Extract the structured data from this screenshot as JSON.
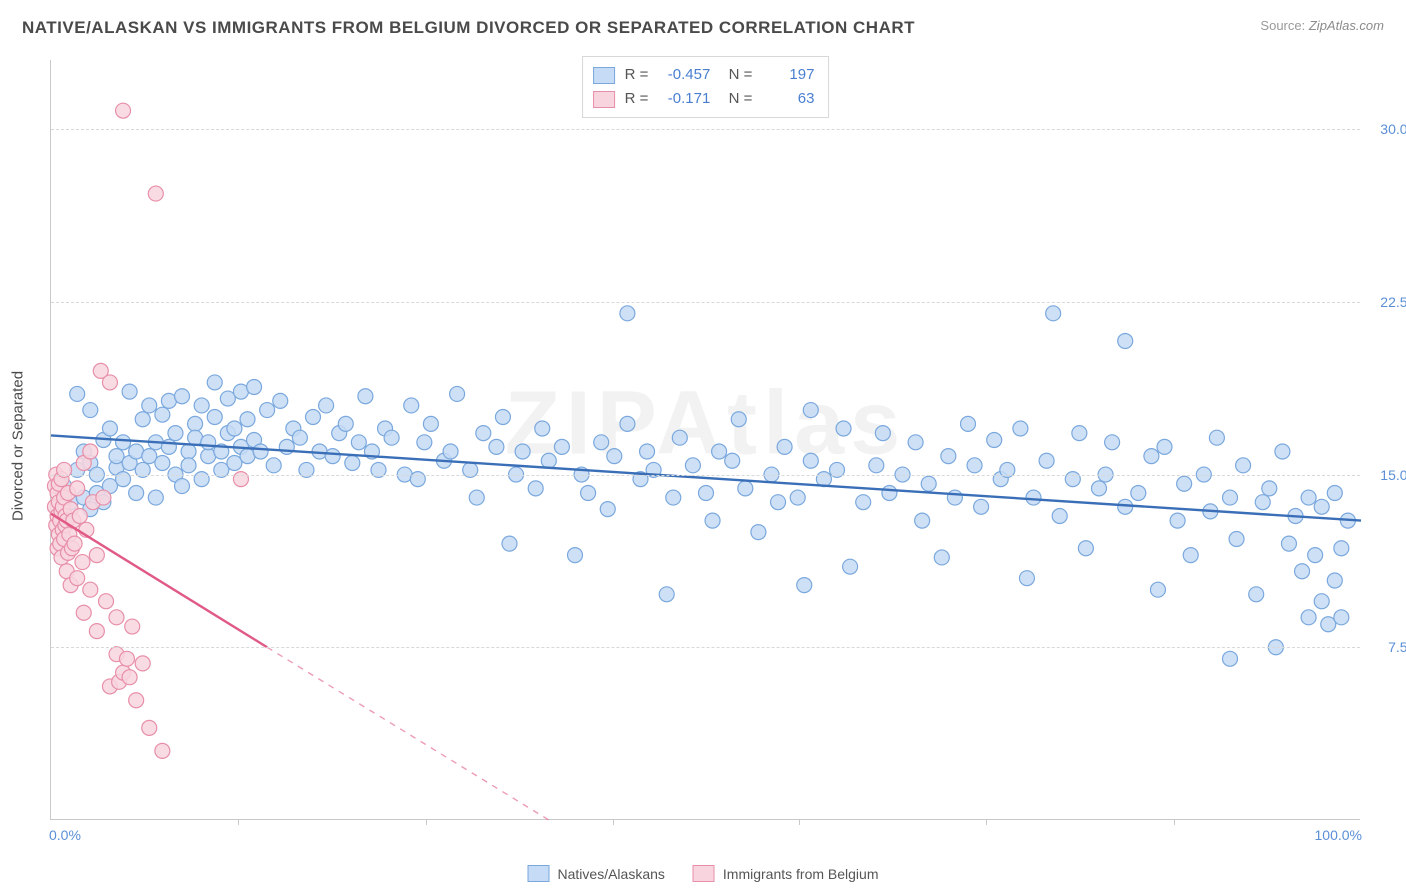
{
  "title": "NATIVE/ALASKAN VS IMMIGRANTS FROM BELGIUM DIVORCED OR SEPARATED CORRELATION CHART",
  "source_label": "Source:",
  "source_name": "ZipAtlas.com",
  "watermark": "ZIPAtlas",
  "y_axis_title": "Divorced or Separated",
  "chart": {
    "type": "scatter",
    "xlim": [
      0,
      100
    ],
    "ylim": [
      0,
      33
    ],
    "x_min_label": "0.0%",
    "x_max_label": "100.0%",
    "y_ticks": [
      {
        "v": 7.5,
        "label": "7.5%"
      },
      {
        "v": 15.0,
        "label": "15.0%"
      },
      {
        "v": 22.5,
        "label": "22.5%"
      },
      {
        "v": 30.0,
        "label": "30.0%"
      }
    ],
    "x_ticks_minor": [
      14.3,
      28.6,
      42.9,
      57.1,
      71.4,
      85.7
    ],
    "grid_color": "#d8d8d8",
    "background_color": "#ffffff",
    "marker_radius": 7.5,
    "marker_stroke_width": 1.2,
    "trend_line_width": 2.4,
    "series": [
      {
        "name": "Natives/Alaskans",
        "fill": "#c6dbf5",
        "stroke": "#7aa8dd",
        "line_color": "#3a6fb8",
        "R": "-0.457",
        "N": "197",
        "trend": {
          "x1": 0,
          "y1": 16.7,
          "x2": 100,
          "y2": 13.0
        },
        "points": [
          [
            1,
            14.5
          ],
          [
            1.5,
            13.8
          ],
          [
            2,
            18.5
          ],
          [
            2,
            15.2
          ],
          [
            2.5,
            16.0
          ],
          [
            2.5,
            14.0
          ],
          [
            3,
            15.5
          ],
          [
            3,
            13.5
          ],
          [
            3,
            17.8
          ],
          [
            3.5,
            15.0
          ],
          [
            3.5,
            14.2
          ],
          [
            4,
            16.5
          ],
          [
            4,
            13.8
          ],
          [
            4.5,
            14.5
          ],
          [
            4.5,
            17.0
          ],
          [
            5,
            15.3
          ],
          [
            5,
            15.8
          ],
          [
            5.5,
            14.8
          ],
          [
            5.5,
            16.4
          ],
          [
            6,
            15.5
          ],
          [
            6,
            18.6
          ],
          [
            6.5,
            16.0
          ],
          [
            6.5,
            14.2
          ],
          [
            7,
            17.4
          ],
          [
            7,
            15.2
          ],
          [
            7.5,
            15.8
          ],
          [
            7.5,
            18.0
          ],
          [
            8,
            16.4
          ],
          [
            8,
            14.0
          ],
          [
            8.5,
            15.5
          ],
          [
            8.5,
            17.6
          ],
          [
            9,
            16.2
          ],
          [
            9,
            18.2
          ],
          [
            9.5,
            15.0
          ],
          [
            9.5,
            16.8
          ],
          [
            10,
            14.5
          ],
          [
            10,
            18.4
          ],
          [
            10.5,
            16.0
          ],
          [
            10.5,
            15.4
          ],
          [
            11,
            17.2
          ],
          [
            11,
            16.6
          ],
          [
            11.5,
            18.0
          ],
          [
            11.5,
            14.8
          ],
          [
            12,
            15.8
          ],
          [
            12,
            16.4
          ],
          [
            12.5,
            17.5
          ],
          [
            12.5,
            19.0
          ],
          [
            13,
            15.2
          ],
          [
            13,
            16.0
          ],
          [
            13.5,
            18.3
          ],
          [
            13.5,
            16.8
          ],
          [
            14,
            17.0
          ],
          [
            14,
            15.5
          ],
          [
            14.5,
            16.2
          ],
          [
            14.5,
            18.6
          ],
          [
            15,
            15.8
          ],
          [
            15,
            17.4
          ],
          [
            15.5,
            16.5
          ],
          [
            15.5,
            18.8
          ],
          [
            16,
            16.0
          ],
          [
            16.5,
            17.8
          ],
          [
            17,
            15.4
          ],
          [
            17.5,
            18.2
          ],
          [
            18,
            16.2
          ],
          [
            18.5,
            17.0
          ],
          [
            19,
            16.6
          ],
          [
            19.5,
            15.2
          ],
          [
            20,
            17.5
          ],
          [
            20.5,
            16.0
          ],
          [
            21,
            18.0
          ],
          [
            21.5,
            15.8
          ],
          [
            22,
            16.8
          ],
          [
            22.5,
            17.2
          ],
          [
            23,
            15.5
          ],
          [
            23.5,
            16.4
          ],
          [
            24,
            18.4
          ],
          [
            24.5,
            16.0
          ],
          [
            25,
            15.2
          ],
          [
            25.5,
            17.0
          ],
          [
            26,
            16.6
          ],
          [
            27,
            15.0
          ],
          [
            27.5,
            18.0
          ],
          [
            28,
            14.8
          ],
          [
            28.5,
            16.4
          ],
          [
            29,
            17.2
          ],
          [
            30,
            15.6
          ],
          [
            30.5,
            16.0
          ],
          [
            31,
            18.5
          ],
          [
            32,
            15.2
          ],
          [
            32.5,
            14.0
          ],
          [
            33,
            16.8
          ],
          [
            34,
            16.2
          ],
          [
            34.5,
            17.5
          ],
          [
            35,
            12.0
          ],
          [
            35.5,
            15.0
          ],
          [
            36,
            16.0
          ],
          [
            37,
            14.4
          ],
          [
            37.5,
            17.0
          ],
          [
            38,
            15.6
          ],
          [
            39,
            16.2
          ],
          [
            40,
            11.5
          ],
          [
            40.5,
            15.0
          ],
          [
            41,
            14.2
          ],
          [
            42,
            16.4
          ],
          [
            42.5,
            13.5
          ],
          [
            43,
            15.8
          ],
          [
            44,
            17.2
          ],
          [
            44,
            22.0
          ],
          [
            45,
            14.8
          ],
          [
            45.5,
            16.0
          ],
          [
            46,
            15.2
          ],
          [
            47,
            9.8
          ],
          [
            47.5,
            14.0
          ],
          [
            48,
            16.6
          ],
          [
            49,
            15.4
          ],
          [
            50,
            14.2
          ],
          [
            50.5,
            13.0
          ],
          [
            51,
            16.0
          ],
          [
            52,
            15.6
          ],
          [
            52.5,
            17.4
          ],
          [
            53,
            14.4
          ],
          [
            54,
            12.5
          ],
          [
            55,
            15.0
          ],
          [
            55.5,
            13.8
          ],
          [
            56,
            16.2
          ],
          [
            57,
            14.0
          ],
          [
            57.5,
            10.2
          ],
          [
            58,
            15.6
          ],
          [
            58,
            17.8
          ],
          [
            59,
            14.8
          ],
          [
            60,
            15.2
          ],
          [
            60.5,
            17.0
          ],
          [
            61,
            11.0
          ],
          [
            62,
            13.8
          ],
          [
            63,
            15.4
          ],
          [
            63.5,
            16.8
          ],
          [
            64,
            14.2
          ],
          [
            65,
            15.0
          ],
          [
            66,
            16.4
          ],
          [
            66.5,
            13.0
          ],
          [
            67,
            14.6
          ],
          [
            68,
            11.4
          ],
          [
            68.5,
            15.8
          ],
          [
            69,
            14.0
          ],
          [
            70,
            17.2
          ],
          [
            70.5,
            15.4
          ],
          [
            71,
            13.6
          ],
          [
            72,
            16.5
          ],
          [
            72.5,
            14.8
          ],
          [
            73,
            15.2
          ],
          [
            74,
            17.0
          ],
          [
            74.5,
            10.5
          ],
          [
            75,
            14.0
          ],
          [
            76,
            15.6
          ],
          [
            76.5,
            22.0
          ],
          [
            77,
            13.2
          ],
          [
            78,
            14.8
          ],
          [
            78.5,
            16.8
          ],
          [
            79,
            11.8
          ],
          [
            80,
            14.4
          ],
          [
            80.5,
            15.0
          ],
          [
            81,
            16.4
          ],
          [
            82,
            13.6
          ],
          [
            82,
            20.8
          ],
          [
            83,
            14.2
          ],
          [
            84,
            15.8
          ],
          [
            84.5,
            10.0
          ],
          [
            85,
            16.2
          ],
          [
            86,
            13.0
          ],
          [
            86.5,
            14.6
          ],
          [
            87,
            11.5
          ],
          [
            88,
            15.0
          ],
          [
            88.5,
            13.4
          ],
          [
            89,
            16.6
          ],
          [
            90,
            14.0
          ],
          [
            90,
            7.0
          ],
          [
            90.5,
            12.2
          ],
          [
            91,
            15.4
          ],
          [
            92,
            9.8
          ],
          [
            92.5,
            13.8
          ],
          [
            93,
            14.4
          ],
          [
            93.5,
            7.5
          ],
          [
            94,
            16.0
          ],
          [
            94.5,
            12.0
          ],
          [
            95,
            13.2
          ],
          [
            95.5,
            10.8
          ],
          [
            96,
            8.8
          ],
          [
            96,
            14.0
          ],
          [
            96.5,
            11.5
          ],
          [
            97,
            9.5
          ],
          [
            97,
            13.6
          ],
          [
            97.5,
            8.5
          ],
          [
            98,
            14.2
          ],
          [
            98,
            10.4
          ],
          [
            98.5,
            11.8
          ],
          [
            98.5,
            8.8
          ],
          [
            99,
            13.0
          ]
        ]
      },
      {
        "name": "Immigrants from Belgium",
        "fill": "#f8d5de",
        "stroke": "#e78fa8",
        "line_color": "#e05a85",
        "R": "-0.171",
        "N": "63",
        "trend": {
          "x1": 0,
          "y1": 13.3,
          "x2": 16.5,
          "y2": 7.5
        },
        "trend_dash": {
          "x1": 16.5,
          "y1": 7.5,
          "x2": 38,
          "y2": 0
        },
        "points": [
          [
            0.3,
            14.5
          ],
          [
            0.3,
            13.6
          ],
          [
            0.4,
            12.8
          ],
          [
            0.4,
            15.0
          ],
          [
            0.5,
            13.2
          ],
          [
            0.5,
            14.2
          ],
          [
            0.5,
            11.8
          ],
          [
            0.6,
            13.8
          ],
          [
            0.6,
            12.4
          ],
          [
            0.6,
            14.6
          ],
          [
            0.7,
            13.0
          ],
          [
            0.7,
            12.0
          ],
          [
            0.8,
            13.4
          ],
          [
            0.8,
            14.8
          ],
          [
            0.8,
            11.4
          ],
          [
            0.9,
            12.6
          ],
          [
            0.9,
            13.6
          ],
          [
            1.0,
            14.0
          ],
          [
            1.0,
            12.2
          ],
          [
            1.0,
            15.2
          ],
          [
            1.1,
            13.2
          ],
          [
            1.1,
            12.8
          ],
          [
            1.2,
            10.8
          ],
          [
            1.2,
            13.0
          ],
          [
            1.3,
            14.2
          ],
          [
            1.3,
            11.6
          ],
          [
            1.4,
            12.4
          ],
          [
            1.5,
            13.5
          ],
          [
            1.5,
            10.2
          ],
          [
            1.6,
            11.8
          ],
          [
            1.7,
            13.0
          ],
          [
            1.8,
            12.0
          ],
          [
            2.0,
            14.4
          ],
          [
            2.0,
            10.5
          ],
          [
            2.2,
            13.2
          ],
          [
            2.4,
            11.2
          ],
          [
            2.5,
            15.5
          ],
          [
            2.5,
            9.0
          ],
          [
            2.7,
            12.6
          ],
          [
            3.0,
            16.0
          ],
          [
            3.0,
            10.0
          ],
          [
            3.2,
            13.8
          ],
          [
            3.5,
            11.5
          ],
          [
            3.5,
            8.2
          ],
          [
            3.8,
            19.5
          ],
          [
            4.0,
            14.0
          ],
          [
            4.2,
            9.5
          ],
          [
            4.5,
            19.0
          ],
          [
            4.5,
            5.8
          ],
          [
            5.0,
            7.2
          ],
          [
            5.0,
            8.8
          ],
          [
            5.2,
            6.0
          ],
          [
            5.5,
            30.8
          ],
          [
            5.5,
            6.4
          ],
          [
            5.8,
            7.0
          ],
          [
            6.0,
            6.2
          ],
          [
            6.2,
            8.4
          ],
          [
            6.5,
            5.2
          ],
          [
            7.0,
            6.8
          ],
          [
            7.5,
            4.0
          ],
          [
            8.0,
            27.2
          ],
          [
            8.5,
            3.0
          ],
          [
            14.5,
            14.8
          ]
        ]
      }
    ]
  },
  "bottom_legend": [
    {
      "swatch_fill": "#c6dbf5",
      "swatch_stroke": "#7aa8dd",
      "label": "Natives/Alaskans"
    },
    {
      "swatch_fill": "#f8d5de",
      "swatch_stroke": "#e78fa8",
      "label": "Immigrants from Belgium"
    }
  ]
}
